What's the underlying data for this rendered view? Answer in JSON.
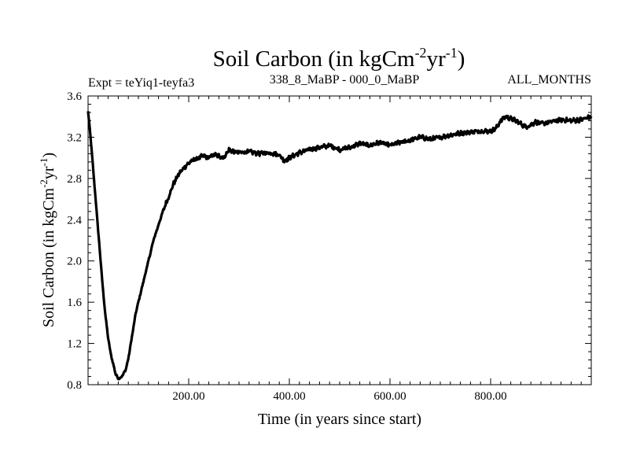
{
  "chart_data": {
    "type": "line",
    "title": {
      "prefix": "Soil Carbon (in kgCm",
      "sup1": "-2",
      "mid": "yr",
      "sup2": "-1",
      "suffix": ")"
    },
    "ylabel": {
      "prefix": "Soil Carbon (in kgCm",
      "sup1": "-2",
      "mid": "yr",
      "sup2": "-1",
      "suffix": ")"
    },
    "xlabel": "Time (in years since start)",
    "subtitle_left": "Expt = teYiq1-teyfa3",
    "subtitle_center": "338_8_MaBP - 000_0_MaBP",
    "subtitle_right": "ALL_MONTHS",
    "xlim": [
      0,
      1000
    ],
    "ylim": [
      0.8,
      3.6
    ],
    "x_ticks": [
      200,
      400,
      600,
      800
    ],
    "x_tick_labels": [
      "200.00",
      "400.00",
      "600.00",
      "800.00"
    ],
    "y_ticks": [
      0.8,
      1.2,
      1.6,
      2.0,
      2.4,
      2.8,
      3.2,
      3.6
    ],
    "y_tick_labels": [
      "0.8",
      "1.2",
      "1.6",
      "2.0",
      "2.4",
      "2.8",
      "3.2",
      "3.6"
    ],
    "line_color": "#000000",
    "series": [
      {
        "name": "Soil Carbon",
        "x": [
          0,
          5,
          10,
          15,
          20,
          25,
          30,
          35,
          40,
          45,
          50,
          55,
          60,
          65,
          70,
          75,
          80,
          85,
          90,
          95,
          100,
          110,
          120,
          130,
          140,
          150,
          160,
          170,
          180,
          190,
          200,
          210,
          220,
          230,
          240,
          250,
          260,
          270,
          280,
          290,
          300,
          320,
          340,
          360,
          380,
          390,
          400,
          420,
          440,
          460,
          480,
          500,
          520,
          540,
          560,
          580,
          600,
          620,
          640,
          660,
          680,
          700,
          720,
          740,
          760,
          780,
          800,
          810,
          820,
          830,
          840,
          850,
          860,
          870,
          880,
          890,
          900,
          920,
          940,
          960,
          980,
          1000
        ],
        "values": [
          3.45,
          3.2,
          2.9,
          2.6,
          2.3,
          2.0,
          1.7,
          1.45,
          1.25,
          1.1,
          1.0,
          0.9,
          0.86,
          0.87,
          0.9,
          0.95,
          1.05,
          1.2,
          1.35,
          1.5,
          1.6,
          1.8,
          2.0,
          2.2,
          2.35,
          2.5,
          2.62,
          2.75,
          2.84,
          2.9,
          2.95,
          2.98,
          3.0,
          3.02,
          3.0,
          3.03,
          3.02,
          3.0,
          3.08,
          3.06,
          3.05,
          3.06,
          3.04,
          3.05,
          3.03,
          2.97,
          3.0,
          3.05,
          3.08,
          3.1,
          3.12,
          3.08,
          3.1,
          3.14,
          3.12,
          3.15,
          3.12,
          3.15,
          3.17,
          3.2,
          3.18,
          3.2,
          3.22,
          3.24,
          3.25,
          3.26,
          3.26,
          3.28,
          3.36,
          3.4,
          3.38,
          3.36,
          3.33,
          3.3,
          3.32,
          3.35,
          3.33,
          3.35,
          3.37,
          3.36,
          3.37,
          3.4
        ]
      }
    ]
  }
}
